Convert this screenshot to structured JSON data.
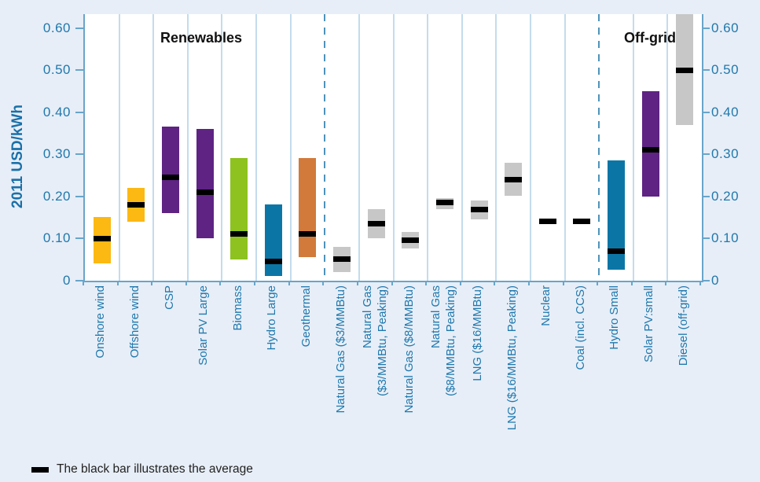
{
  "sections": [
    {
      "label": "Renewables"
    },
    {
      "label": "Off-grid"
    }
  ],
  "legend": {
    "text": "The black bar illustrates the average"
  },
  "colors": {
    "background": "#e7eef7",
    "plot_background": "#ffffff",
    "wind_yellow": "#fcb813",
    "solar_purple": "#5e2383",
    "biomass_green": "#8dc21f",
    "hydro_blue": "#0b76a6",
    "geothermal_orange": "#d17a3b",
    "fossil_gray": "#c7c7c7",
    "average_black": "#000000",
    "axis_text_blue": "#1f78ad",
    "axis_line_blue": "#69a5c9",
    "separator_light_blue": "#c3dcec",
    "divider_dashed_blue": "#4e93ba"
  },
  "chart_data": {
    "type": "bar",
    "subtype": "floating-range-bars-with-average-marker",
    "title": "",
    "xlabel": "",
    "ylabel": "2011 USD/kWh",
    "ylim": [
      0,
      0.63
    ],
    "yticks": [
      0,
      0.1,
      0.2,
      0.3,
      0.4,
      0.5,
      0.6
    ],
    "ytick_labels": [
      "0",
      "0.10",
      "0.20",
      "0.30",
      "0.40",
      "0.50",
      "0.60"
    ],
    "y_axis_sides": "both left and right",
    "grid": "vertical column separators only, dashed dividers between groups",
    "legend_position": "bottom-left",
    "categories": [
      "Onshore wind",
      "Offshore wind",
      "CSP",
      "Solar PV Large",
      "Biomass",
      "Hydro Large",
      "Geothermal",
      "Natural Gas ($3/MMBtu)",
      "Natural Gas ($3/MMBtu, Peaking)",
      "Natural Gas ($8/MMBtu)",
      "Natural Gas ($8/MMBtu, Peaking)",
      "LNG ($16/MMBtu)",
      "LNG ($16/MMBtu, Peaking)",
      "Nuclear",
      "Coal (incl. CCS)",
      "Hydro Small",
      "Solar PV:small",
      "Diesel (off-grid)"
    ],
    "bars": [
      {
        "label": "Onshore wind",
        "lines": [
          "Onshore wind"
        ],
        "group": "renewables",
        "color": "#fcb813",
        "low": 0.04,
        "high": 0.15,
        "average": 0.1
      },
      {
        "label": "Offshore wind",
        "lines": [
          "Offshore wind"
        ],
        "group": "renewables",
        "color": "#fcb813",
        "low": 0.14,
        "high": 0.22,
        "average": 0.18
      },
      {
        "label": "CSP",
        "lines": [
          "CSP"
        ],
        "group": "renewables",
        "color": "#5e2383",
        "low": 0.16,
        "high": 0.365,
        "average": 0.245
      },
      {
        "label": "Solar PV Large",
        "lines": [
          "Solar PV Large"
        ],
        "group": "renewables",
        "color": "#5e2383",
        "low": 0.1,
        "high": 0.36,
        "average": 0.21
      },
      {
        "label": "Biomass",
        "lines": [
          "Biomass"
        ],
        "group": "renewables",
        "color": "#8dc21f",
        "low": 0.05,
        "high": 0.29,
        "average": 0.11
      },
      {
        "label": "Hydro Large",
        "lines": [
          "Hydro Large"
        ],
        "group": "renewables",
        "color": "#0b76a6",
        "low": 0.01,
        "high": 0.18,
        "average": 0.045
      },
      {
        "label": "Geothermal",
        "lines": [
          "Geothermal"
        ],
        "group": "renewables",
        "color": "#d17a3b",
        "low": 0.055,
        "high": 0.29,
        "average": 0.11
      },
      {
        "label": "Natural Gas ($3/MMBtu)",
        "lines": [
          "Natural Gas ($3/MMBtu)"
        ],
        "group": "fossil-nuclear",
        "color": "#c7c7c7",
        "low": 0.02,
        "high": 0.08,
        "average": 0.05
      },
      {
        "label": "Natural Gas ($3/MMBtu, Peaking)",
        "lines": [
          "Natural Gas",
          "($3/MMBtu, Peaking)"
        ],
        "group": "fossil-nuclear",
        "color": "#c7c7c7",
        "low": 0.1,
        "high": 0.17,
        "average": 0.135
      },
      {
        "label": "Natural Gas ($8/MMBtu)",
        "lines": [
          "Natural Gas ($8/MMBtu)"
        ],
        "group": "fossil-nuclear",
        "color": "#c7c7c7",
        "low": 0.075,
        "high": 0.115,
        "average": 0.095
      },
      {
        "label": "Natural Gas ($8/MMBtu, Peaking)",
        "lines": [
          "Natural Gas",
          "($8/MMBtu, Peaking)"
        ],
        "group": "fossil-nuclear",
        "color": "#c7c7c7",
        "low": 0.17,
        "high": 0.195,
        "average": 0.185
      },
      {
        "label": "LNG ($16/MMBtu)",
        "lines": [
          "LNG ($16/MMBtu)"
        ],
        "group": "fossil-nuclear",
        "color": "#c7c7c7",
        "low": 0.145,
        "high": 0.19,
        "average": 0.168
      },
      {
        "label": "LNG ($16/MMBtu, Peaking)",
        "lines": [
          "LNG ($16/MMBtu, Peaking)"
        ],
        "group": "fossil-nuclear",
        "color": "#c7c7c7",
        "low": 0.2,
        "high": 0.28,
        "average": 0.24
      },
      {
        "label": "Nuclear",
        "lines": [
          "Nuclear"
        ],
        "group": "fossil-nuclear",
        "color": null,
        "low": null,
        "high": null,
        "average": 0.14
      },
      {
        "label": "Coal (incl. CCS)",
        "lines": [
          "Coal (incl. CCS)"
        ],
        "group": "fossil-nuclear",
        "color": null,
        "low": null,
        "high": null,
        "average": 0.14
      },
      {
        "label": "Hydro Small",
        "lines": [
          "Hydro Small"
        ],
        "group": "off-grid",
        "color": "#0b76a6",
        "low": 0.025,
        "high": 0.285,
        "average": 0.07
      },
      {
        "label": "Solar PV:small",
        "lines": [
          "Solar PV:small"
        ],
        "group": "off-grid",
        "color": "#5e2383",
        "low": 0.2,
        "high": 0.45,
        "average": 0.31
      },
      {
        "label": "Diesel (off-grid)",
        "lines": [
          "Diesel (off-grid)"
        ],
        "group": "off-grid",
        "color": "#c7c7c7",
        "low": 0.37,
        "high": 0.64,
        "average": 0.5,
        "clipped_top": true
      }
    ]
  }
}
